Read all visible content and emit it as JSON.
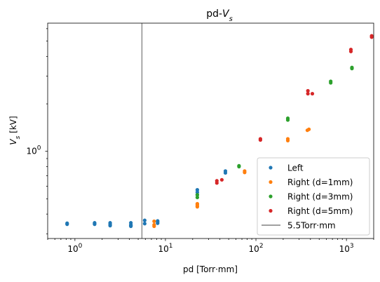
{
  "chart_data": {
    "type": "scatter",
    "title_main": "pd-",
    "title_var": "V",
    "title_sub": "s",
    "xlabel": "pd [Torr·mm]",
    "ylabel_var": "V",
    "ylabel_sub": "s",
    "ylabel_unit": " [kV]",
    "xscale": "log",
    "yscale": "log",
    "xlim": [
      0.5,
      2000
    ],
    "ylim": [
      0.28,
      6.5
    ],
    "x_ticks": [
      {
        "value": 1,
        "base": "10",
        "exp": "0"
      },
      {
        "value": 10,
        "base": "10",
        "exp": "1"
      },
      {
        "value": 100,
        "base": "10",
        "exp": "2"
      },
      {
        "value": 1000,
        "base": "10",
        "exp": "3"
      }
    ],
    "y_ticks": [
      {
        "value": 1,
        "base": "10",
        "exp": "0"
      }
    ],
    "vline": {
      "x": 5.5,
      "label": "5.5Torr·mm",
      "color": "#808080"
    },
    "legend_position": "lower right",
    "series": [
      {
        "name": "Left",
        "color": "#1f77b4",
        "points": [
          [
            0.82,
            0.345
          ],
          [
            0.82,
            0.35
          ],
          [
            1.65,
            0.345
          ],
          [
            1.65,
            0.352
          ],
          [
            1.65,
            0.348
          ],
          [
            2.45,
            0.338
          ],
          [
            2.45,
            0.345
          ],
          [
            2.45,
            0.352
          ],
          [
            4.15,
            0.335
          ],
          [
            4.15,
            0.342
          ],
          [
            4.15,
            0.352
          ],
          [
            4.15,
            0.338
          ],
          [
            5.9,
            0.348
          ],
          [
            5.9,
            0.365
          ],
          [
            8.2,
            0.35
          ],
          [
            8.2,
            0.357
          ],
          [
            8.2,
            0.362
          ],
          [
            22.5,
            0.53
          ],
          [
            22.5,
            0.55
          ],
          [
            22.5,
            0.57
          ],
          [
            46,
            0.73
          ],
          [
            46,
            0.75
          ]
        ]
      },
      {
        "name": "Right (d=1mm)",
        "color": "#ff7f0e",
        "points": [
          [
            7.5,
            0.335
          ],
          [
            7.5,
            0.342
          ],
          [
            7.5,
            0.36
          ],
          [
            22.5,
            0.45
          ],
          [
            22.5,
            0.46
          ],
          [
            22.5,
            0.465
          ],
          [
            22.5,
            0.445
          ],
          [
            75,
            0.735
          ],
          [
            75,
            0.75
          ],
          [
            225,
            1.17
          ],
          [
            225,
            1.2
          ],
          [
            370,
            1.36
          ],
          [
            385,
            1.38
          ]
        ]
      },
      {
        "name": "Right (d=3mm)",
        "color": "#2ca02c",
        "points": [
          [
            22.5,
            0.51
          ],
          [
            22.5,
            0.53
          ],
          [
            65,
            0.8
          ],
          [
            65,
            0.81
          ],
          [
            225,
            1.58
          ],
          [
            225,
            1.62
          ],
          [
            670,
            2.72
          ],
          [
            670,
            2.78
          ],
          [
            1150,
            3.35
          ],
          [
            1150,
            3.4
          ]
        ]
      },
      {
        "name": "Right (d=5mm)",
        "color": "#d62728",
        "points": [
          [
            37,
            0.63
          ],
          [
            37,
            0.65
          ],
          [
            42,
            0.66
          ],
          [
            112,
            1.18
          ],
          [
            112,
            1.2
          ],
          [
            375,
            2.32
          ],
          [
            375,
            2.42
          ],
          [
            420,
            2.32
          ],
          [
            1120,
            4.3
          ],
          [
            1120,
            4.42
          ],
          [
            1900,
            5.3
          ],
          [
            1900,
            5.4
          ]
        ]
      }
    ]
  }
}
